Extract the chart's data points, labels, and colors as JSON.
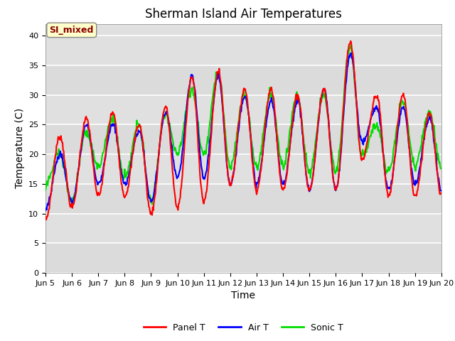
{
  "title": "Sherman Island Air Temperatures",
  "xlabel": "Time",
  "ylabel": "Temperature (C)",
  "annotation": "SI_mixed",
  "ylim": [
    0,
    42
  ],
  "yticks": [
    0,
    5,
    10,
    15,
    20,
    25,
    30,
    35,
    40
  ],
  "x_tick_labels": [
    "Jun 5",
    "Jun 6",
    "Jun 7",
    "Jun 8",
    "Jun 9",
    "Jun 10",
    "Jun 11",
    "Jun 12",
    "Jun 13",
    "Jun 14",
    "Jun 15",
    "Jun 16",
    "Jun 17",
    "Jun 18",
    "Jun 19",
    "Jun 20"
  ],
  "panel_color": "#ff0000",
  "air_color": "#0000ff",
  "sonic_color": "#00dd00",
  "bg_color": "#e0e0e0",
  "annotation_bg": "#ffffcc",
  "annotation_border": "#8b0000",
  "title_fontsize": 12,
  "label_fontsize": 10,
  "tick_fontsize": 8,
  "legend_fontsize": 9,
  "panel_peaks": [
    23,
    26,
    27,
    25,
    28,
    33,
    34,
    31,
    31,
    30,
    31,
    39,
    30,
    30,
    27
  ],
  "panel_troughs": [
    9,
    11,
    13,
    13,
    10,
    11,
    12,
    15,
    14,
    14,
    14,
    14,
    19,
    13,
    13,
    13
  ],
  "air_peaks": [
    20,
    25,
    25,
    24,
    27,
    33,
    33,
    30,
    29,
    29,
    31,
    37,
    28,
    28,
    26
  ],
  "air_troughs": [
    11,
    12,
    15,
    15,
    12,
    16,
    16,
    15,
    15,
    15,
    14,
    14,
    22,
    14,
    15,
    14
  ],
  "sonic_peaks": [
    20,
    24,
    26,
    25,
    27,
    31,
    34,
    30,
    30,
    30,
    30,
    38,
    25,
    29,
    27
  ],
  "sonic_troughs": [
    15,
    12,
    18,
    16,
    12,
    20,
    20,
    18,
    18,
    18,
    17,
    17,
    20,
    17,
    18,
    18
  ]
}
